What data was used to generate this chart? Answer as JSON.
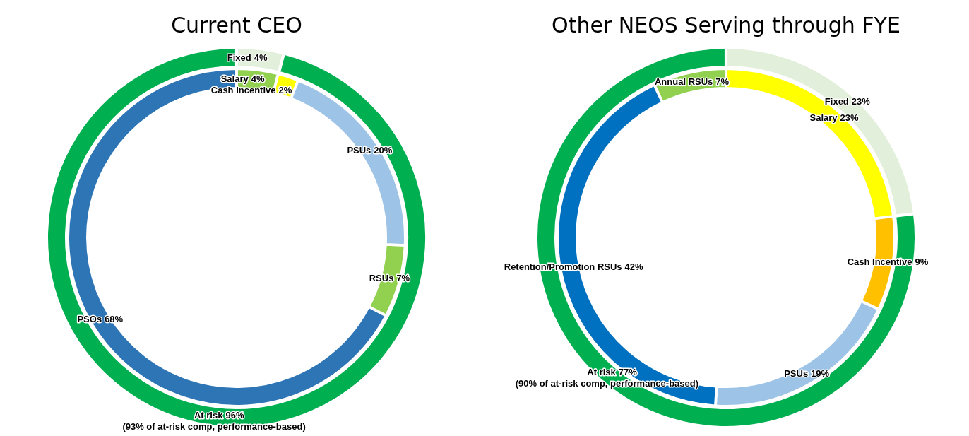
{
  "chart_data": [
    {
      "type": "donut",
      "title": "Current CEO",
      "value_labels": [
        "4%",
        "96%"
      ],
      "annotations": [
        "(93% of at-risk comp, performance-based)"
      ],
      "categories": [
        "Fixed",
        "At risk"
      ],
      "values": [
        4,
        96
      ],
      "colors": [
        "#e2efda",
        "#00b050"
      ]
    },
    {
      "type": "donut",
      "value_labels": [
        "4%",
        "2%",
        "20%",
        "7%",
        "68%"
      ],
      "categories": [
        "Salary",
        "Cash Incentive",
        "PSUs",
        "RSUs",
        "PSOs"
      ],
      "values": [
        4,
        2,
        20,
        7,
        68
      ],
      "colors": [
        "#92d050",
        "#ffff00",
        "#9dc3e6",
        "#92d050",
        "#2e75b6"
      ]
    },
    {
      "type": "donut",
      "title": "Other NEOS Serving through FYE",
      "value_labels": [
        "23%",
        "77%"
      ],
      "annotations": [
        "(90% of at-risk comp, performance-based)"
      ],
      "categories": [
        "Fixed",
        "At risk"
      ],
      "values": [
        23,
        77
      ],
      "colors": [
        "#e2efda",
        "#00b050"
      ]
    },
    {
      "type": "donut",
      "value_labels": [
        "23%",
        "9%",
        "19%",
        "42%",
        "7%"
      ],
      "categories": [
        "Salary",
        "Cash Incentive",
        "PSUs",
        "Retention/Promotion RSUs",
        "Annual RSUs"
      ],
      "values": [
        23,
        9,
        19,
        42,
        7
      ],
      "colors": [
        "#ffff00",
        "#ffc000",
        "#9dc3e6",
        "#0070c0",
        "#92d050"
      ]
    }
  ]
}
